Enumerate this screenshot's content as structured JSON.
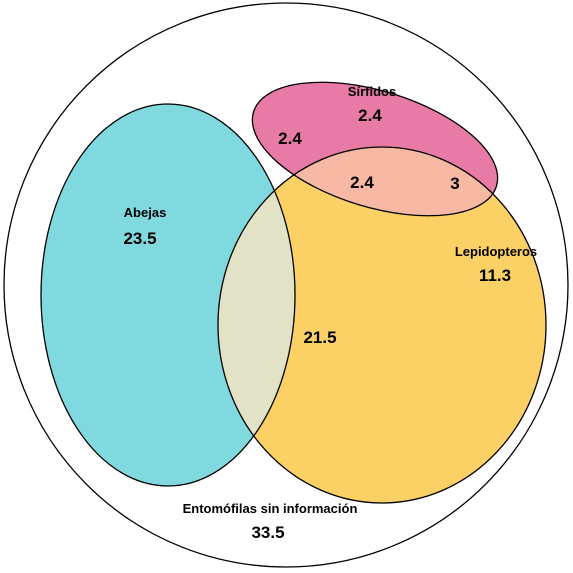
{
  "venn": {
    "sets": [
      {
        "name": "Abejas",
        "value": "23.5",
        "color": "#7fd9de"
      },
      {
        "name": "Sírfidos",
        "value": "2.4",
        "color": "#e87aa6"
      },
      {
        "name": "Lepidopteros",
        "value": "11.3",
        "color": "#fbd064"
      }
    ],
    "intersections": {
      "abejas_sirfidos": "2.4",
      "abejas_sirfidos_lepidopteros": "2.4",
      "sirfidos_lepidopteros": "3",
      "abejas_lepidopteros": "21.5"
    },
    "universe": {
      "name": "Entomófilas sin información",
      "value": "33.5"
    },
    "region_colors": {
      "abejas_sirfidos": "#d9c8d6",
      "sirfidos_lepidopteros": "#f7b8a4",
      "abejas_lepidopteros": "#e2e2c6",
      "all_three": "#e8cabe",
      "outline": "#000000"
    }
  }
}
